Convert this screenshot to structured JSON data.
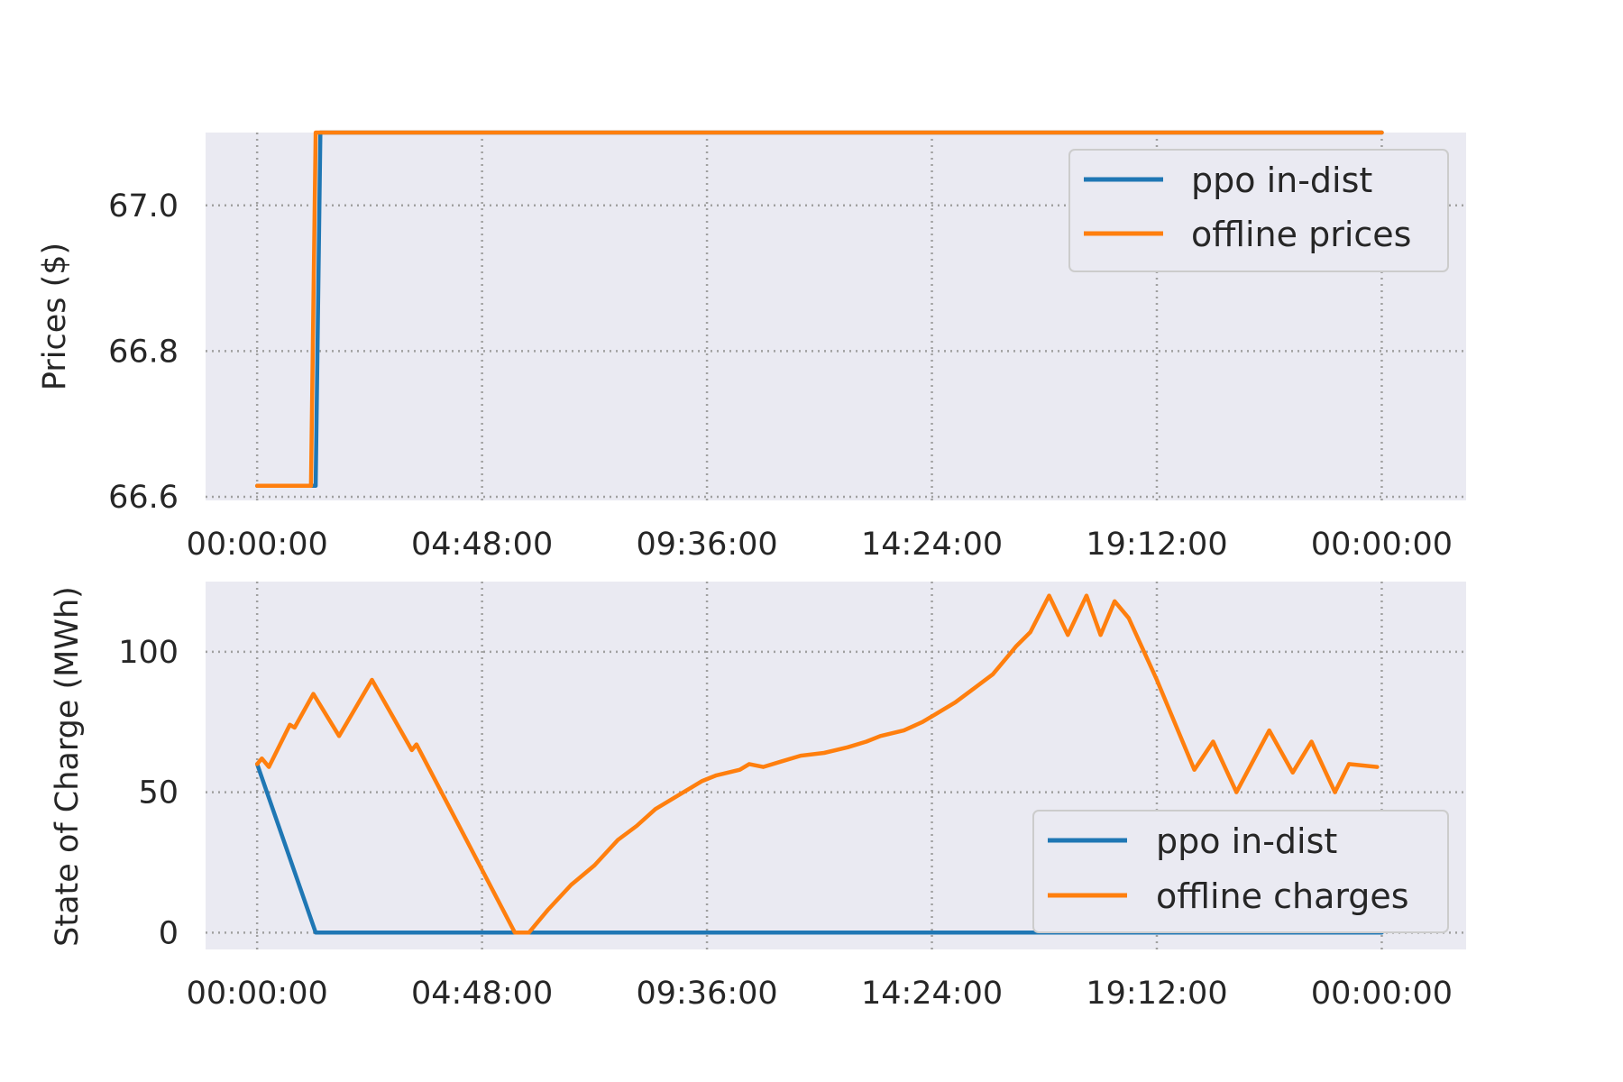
{
  "colors": {
    "ppo": "#1f77b4",
    "offline": "#ff7f0e",
    "plot_bg": "#eaeaf2",
    "grid": "#a0a0a0",
    "text": "#262626"
  },
  "chart_data": [
    {
      "type": "line",
      "ylabel": "Prices ($)",
      "xlabel": "",
      "x_unit": "hours",
      "xlim": [
        -1.1,
        25.8
      ],
      "ylim": [
        66.595,
        67.1
      ],
      "x_ticks": [
        0,
        4.8,
        9.6,
        14.4,
        19.2,
        24.0
      ],
      "x_tick_labels": [
        "00:00:00",
        "04:48:00",
        "09:36:00",
        "14:24:00",
        "19:12:00",
        "00:00:00"
      ],
      "y_ticks": [
        66.6,
        66.8,
        67.0
      ],
      "y_tick_labels": [
        "66.6",
        "66.8",
        "67.0"
      ],
      "grid": true,
      "legend_placement": "upper-right",
      "series": [
        {
          "name": "ppo in-dist",
          "color": "#1f77b4",
          "x": [
            0,
            1.25,
            1.35,
            24.0
          ],
          "y": [
            66.615,
            66.615,
            67.1,
            67.1
          ]
        },
        {
          "name": "offline prices",
          "color": "#ff7f0e",
          "x": [
            0,
            1.15,
            1.25,
            24.0
          ],
          "y": [
            66.615,
            66.615,
            67.1,
            67.1
          ]
        }
      ]
    },
    {
      "type": "line",
      "ylabel": "State of Charge (MWh)",
      "xlabel": "",
      "x_unit": "hours",
      "xlim": [
        -1.1,
        25.8
      ],
      "ylim": [
        -6,
        125
      ],
      "x_ticks": [
        0,
        4.8,
        9.6,
        14.4,
        19.2,
        24.0
      ],
      "x_tick_labels": [
        "00:00:00",
        "04:48:00",
        "09:36:00",
        "14:24:00",
        "19:12:00",
        "00:00:00"
      ],
      "y_ticks": [
        0,
        50,
        100
      ],
      "y_tick_labels": [
        "0",
        "50",
        "100"
      ],
      "grid": true,
      "legend_placement": "lower-right",
      "series": [
        {
          "name": "ppo in-dist",
          "color": "#1f77b4",
          "x": [
            0,
            1.25,
            24.0
          ],
          "y": [
            60,
            0,
            0
          ]
        },
        {
          "name": "offline charges",
          "color": "#ff7f0e",
          "x": [
            0,
            0.1,
            0.25,
            0.7,
            0.8,
            1.2,
            1.75,
            2.45,
            3.3,
            3.4,
            5.5,
            5.8,
            6.2,
            6.7,
            7.2,
            7.7,
            8.1,
            8.5,
            9.0,
            9.5,
            9.8,
            10.3,
            10.5,
            10.8,
            11.2,
            11.6,
            12.1,
            12.6,
            13.0,
            13.3,
            13.8,
            14.2,
            14.5,
            14.9,
            15.3,
            15.7,
            16.1,
            16.2,
            16.5,
            16.9,
            17.3,
            17.7,
            18.0,
            18.3,
            18.6,
            19.2,
            20.0,
            20.4,
            20.9,
            21.6,
            22.1,
            22.5,
            23.0,
            23.3,
            23.9
          ],
          "y": [
            60,
            62,
            59,
            74,
            73,
            85,
            70,
            90,
            65,
            67,
            0,
            0,
            8,
            17,
            24,
            33,
            38,
            44,
            49,
            54,
            56,
            58,
            60,
            59,
            61,
            63,
            64,
            66,
            68,
            70,
            72,
            75,
            78,
            82,
            87,
            92,
            100,
            102,
            107,
            120,
            106,
            120,
            106,
            118,
            112,
            90,
            58,
            68,
            50,
            72,
            57,
            68,
            50,
            60,
            59
          ]
        }
      ]
    }
  ],
  "legends": [
    {
      "items": [
        "ppo in-dist",
        "offline prices"
      ]
    },
    {
      "items": [
        "ppo in-dist",
        "offline charges"
      ]
    }
  ]
}
